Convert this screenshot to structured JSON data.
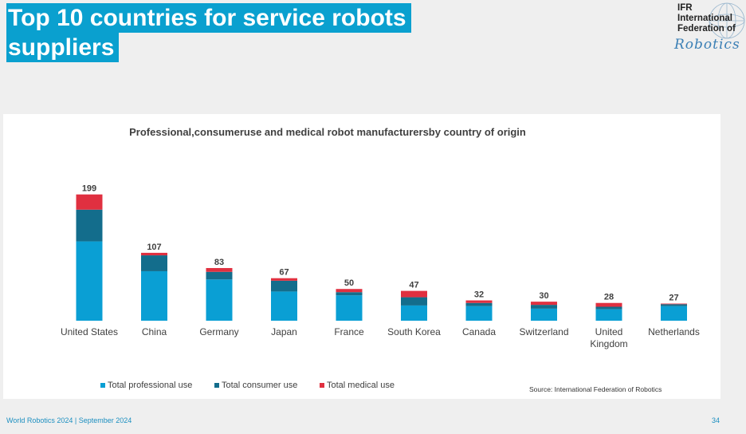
{
  "slide": {
    "title_line1": "Top 10 countries for service robots",
    "title_line2": "suppliers",
    "footer_left": "World Robotics 2024  | September 2024",
    "page_number": "34"
  },
  "logo": {
    "line1": "IFR",
    "line2": "International",
    "line3": "Federation of",
    "script": "Robotics"
  },
  "chart_data": {
    "type": "bar",
    "stacked": true,
    "title": "Professional,consumeruse and medical robot manufacturersby country of origin",
    "categories": [
      "United States",
      "China",
      "Germany",
      "Japan",
      "France",
      "South Korea",
      "Canada",
      "Switzerland",
      "United Kingdom",
      "Netherlands"
    ],
    "category_lines": [
      [
        "United States"
      ],
      [
        "China"
      ],
      [
        "Germany"
      ],
      [
        "Japan"
      ],
      [
        "France"
      ],
      [
        "South Korea"
      ],
      [
        "Canada"
      ],
      [
        "Switzerland"
      ],
      [
        "United",
        "Kingdom"
      ],
      [
        "Netherlands"
      ]
    ],
    "series": [
      {
        "name": "Total professional use",
        "color": "#0a9fd4",
        "values": [
          125,
          78,
          65,
          46,
          40,
          24,
          23,
          19,
          18,
          23
        ]
      },
      {
        "name": "Total consumer use",
        "color": "#136d8c",
        "values": [
          50,
          25,
          12,
          17,
          5,
          13,
          5,
          6,
          4,
          3
        ]
      },
      {
        "name": "Total medical use",
        "color": "#e03040",
        "values": [
          24,
          4,
          6,
          4,
          5,
          10,
          4,
          5,
          6,
          1
        ]
      }
    ],
    "totals": [
      199,
      107,
      83,
      67,
      50,
      47,
      32,
      30,
      28,
      27
    ],
    "ylim": [
      0,
      220
    ],
    "grid": false,
    "legend_position": "bottom-left",
    "source": "Source: International Federation of Robotics"
  },
  "colors": {
    "title_bg": "#0aa0cf",
    "footer_text": "#1c8fc0",
    "slide_bg": "#efefef"
  }
}
